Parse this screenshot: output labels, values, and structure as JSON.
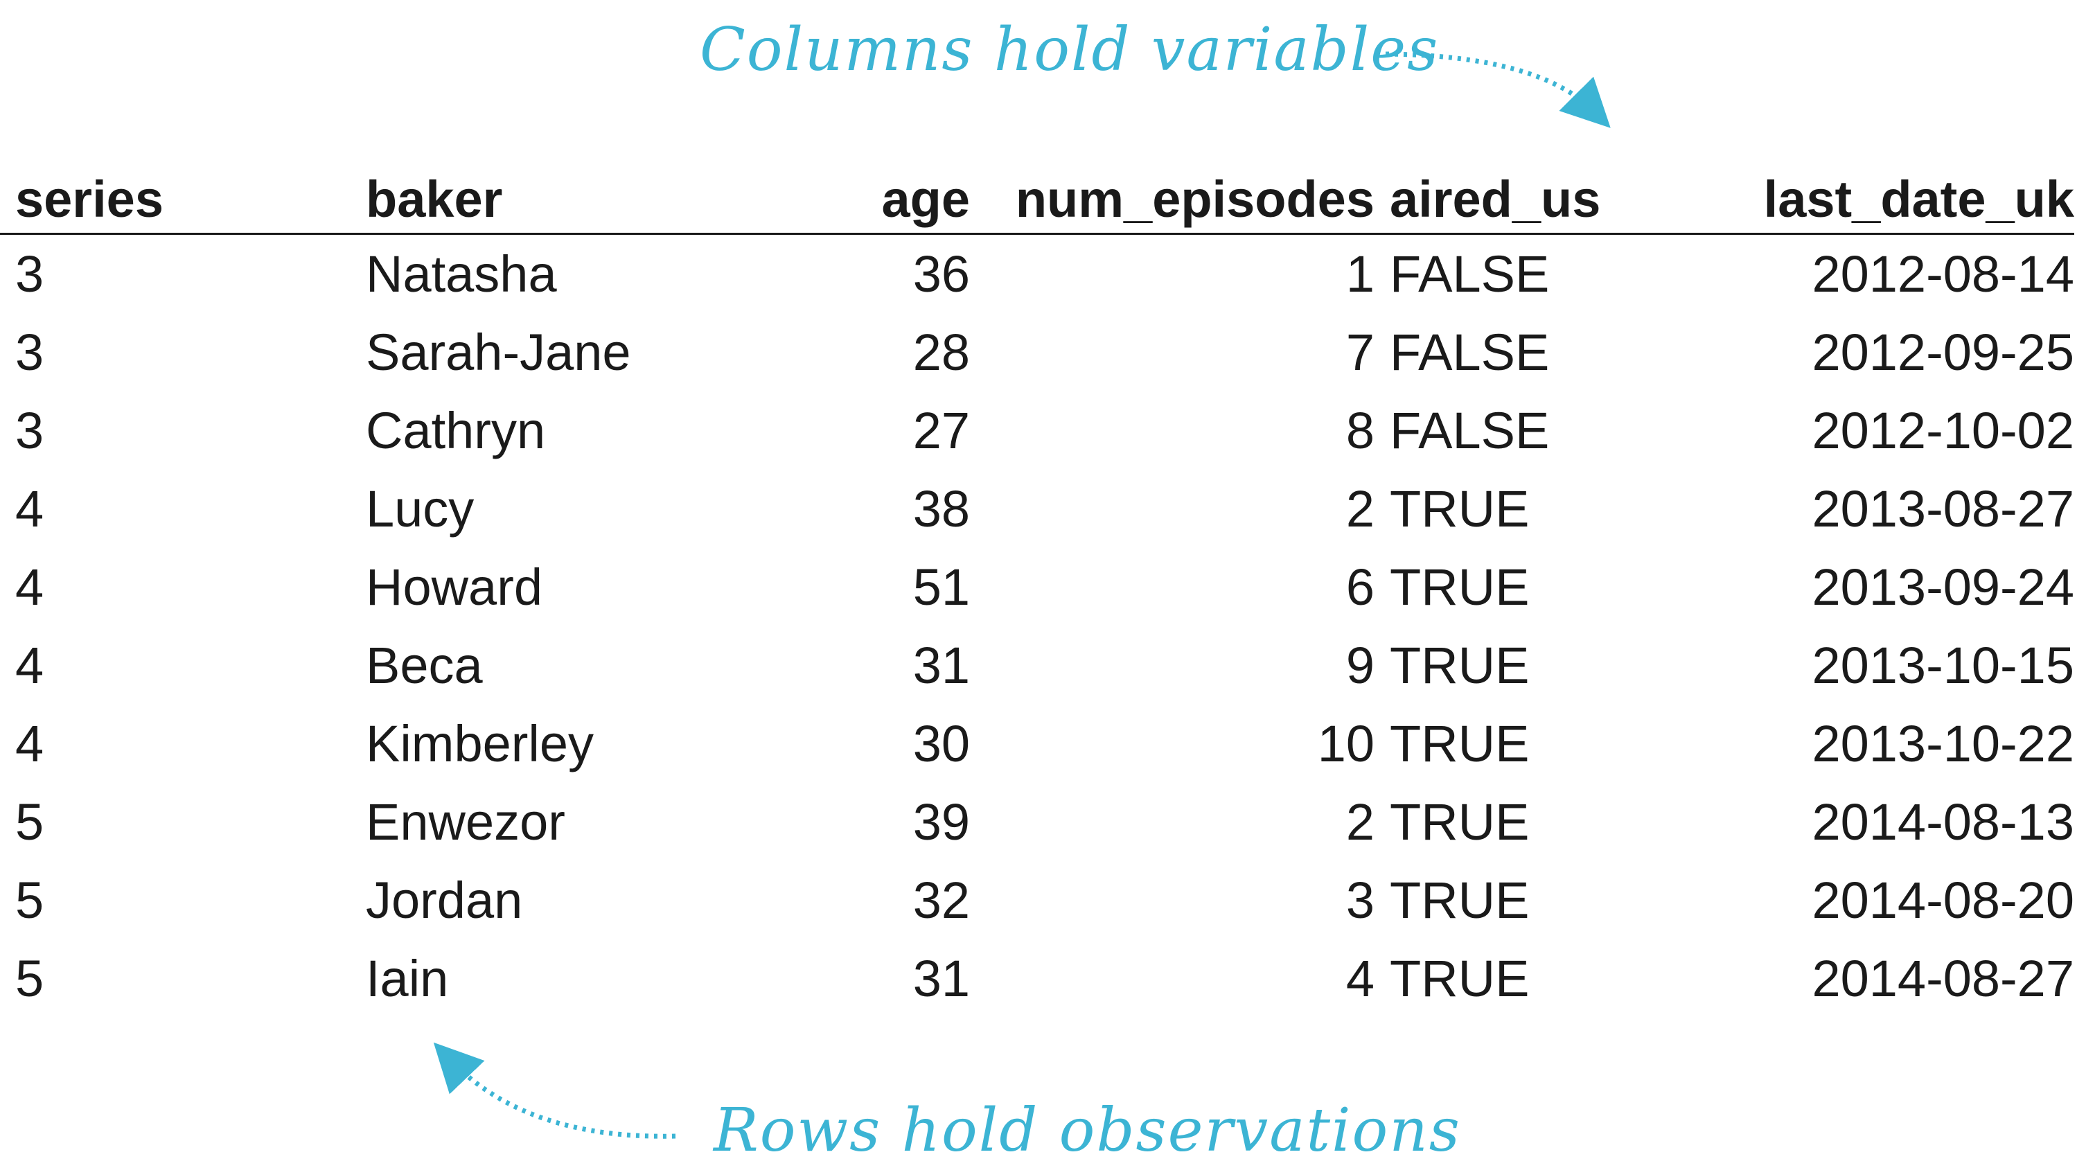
{
  "annotations": {
    "columns_note": "Columns hold variables",
    "rows_note": "Rows hold observations",
    "accent_color": "#3cb4d4"
  },
  "table": {
    "headers": [
      "series",
      "baker",
      "age",
      "num_episodes",
      "aired_us",
      "last_date_uk"
    ],
    "rows": [
      [
        "3",
        "Natasha",
        "36",
        "1",
        "FALSE",
        "2012-08-14"
      ],
      [
        "3",
        "Sarah-Jane",
        "28",
        "7",
        "FALSE",
        "2012-09-25"
      ],
      [
        "3",
        "Cathryn",
        "27",
        "8",
        "FALSE",
        "2012-10-02"
      ],
      [
        "4",
        "Lucy",
        "38",
        "2",
        "TRUE",
        "2013-08-27"
      ],
      [
        "4",
        "Howard",
        "51",
        "6",
        "TRUE",
        "2013-09-24"
      ],
      [
        "4",
        "Beca",
        "31",
        "9",
        "TRUE",
        "2013-10-15"
      ],
      [
        "4",
        "Kimberley",
        "30",
        "10",
        "TRUE",
        "2013-10-22"
      ],
      [
        "5",
        "Enwezor",
        "39",
        "2",
        "TRUE",
        "2014-08-13"
      ],
      [
        "5",
        "Jordan",
        "32",
        "3",
        "TRUE",
        "2014-08-20"
      ],
      [
        "5",
        "Iain",
        "31",
        "4",
        "TRUE",
        "2014-08-27"
      ]
    ]
  }
}
